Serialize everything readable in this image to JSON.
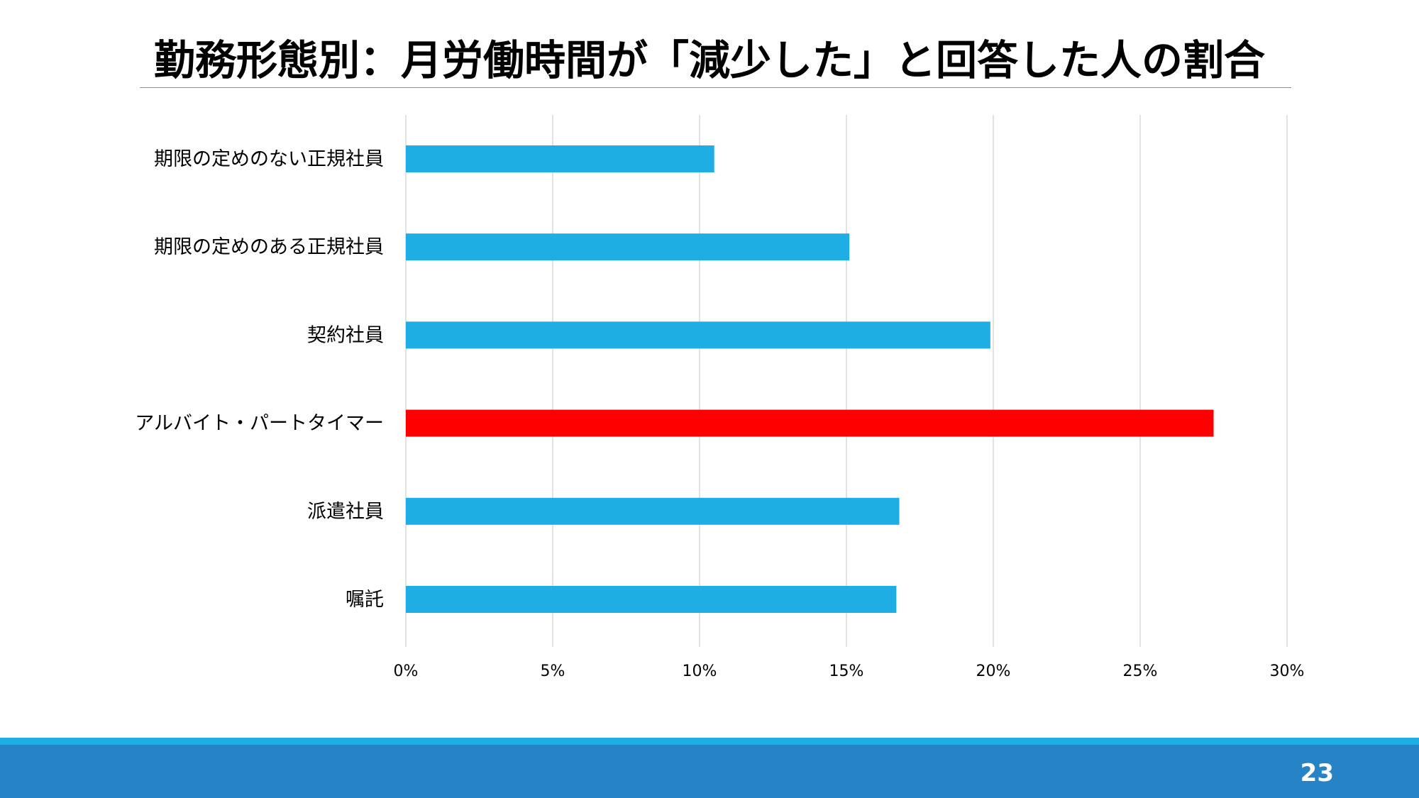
{
  "title": "勤務形態別：月労働時間が「減少した」と回答した人の割合",
  "page_number": "23",
  "colors": {
    "bar_default": "#1faee3",
    "bar_highlight": "#ff0000",
    "footer_stripe": "#1faee3",
    "footer_bar": "#2683c6",
    "grid": "#d9d9d9"
  },
  "chart_data": {
    "type": "bar",
    "orientation": "horizontal",
    "categories": [
      "期限の定めのない正規社員",
      "期限の定めのある正規社員",
      "契約社員",
      "アルバイト・パートタイマー",
      "派遣社員",
      "嘱託"
    ],
    "values": [
      10.5,
      15.1,
      19.9,
      27.5,
      16.8,
      16.7
    ],
    "highlight_index": 3,
    "xlim": [
      0,
      30
    ],
    "xticks": [
      0,
      5,
      10,
      15,
      20,
      25,
      30
    ],
    "xtick_labels": [
      "0%",
      "5%",
      "10%",
      "15%",
      "20%",
      "25%",
      "30%"
    ],
    "grid": "vertical",
    "legend": "none"
  }
}
